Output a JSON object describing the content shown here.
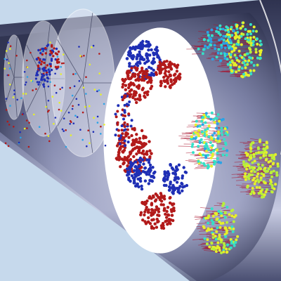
{
  "scene": {
    "background": "#c6d9ec",
    "tube_colors": {
      "shell_dark": "#2f3350",
      "shell_mid": "#6d7398",
      "shell_light": "#c7cbe2",
      "edge": "#ffffff",
      "cross_section": "#ffffff"
    },
    "particle_colors": {
      "species_a": "#1f2fb5",
      "species_b": "#b21a1a",
      "velocity_low": "#2aa3e6",
      "velocity_mid": "#35e0c8",
      "velocity_high": "#e6f02a",
      "velocity_max": "#b8f03a",
      "trail": "#a8122c"
    },
    "cross_section_count": 4
  }
}
